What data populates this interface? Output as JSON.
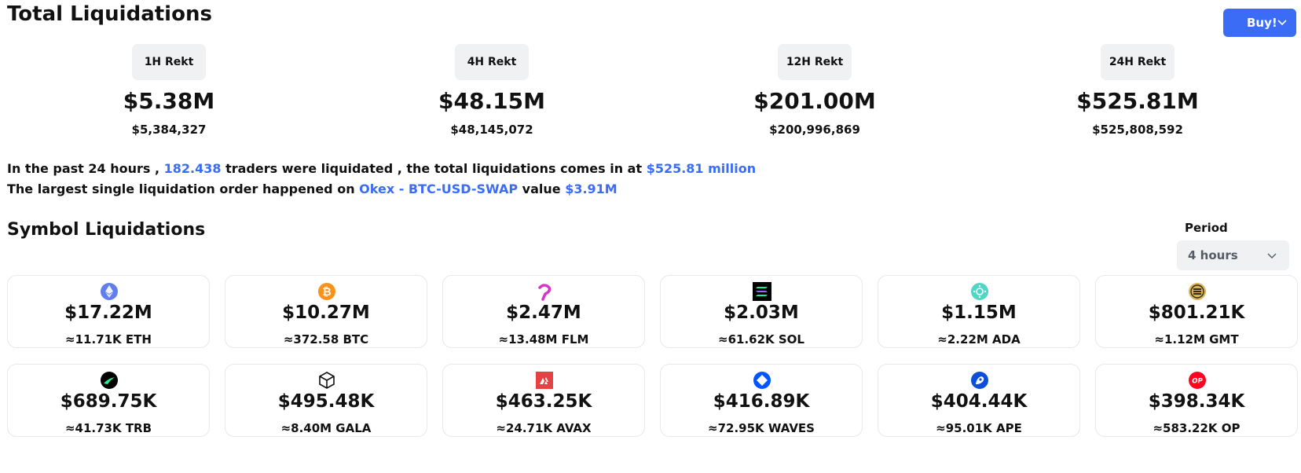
{
  "header": {
    "title": "Total Liquidations",
    "buy_label": "Buy!"
  },
  "stats": [
    {
      "label": "1H Rekt",
      "big": "$5.38M",
      "exact": "$5,384,327"
    },
    {
      "label": "4H Rekt",
      "big": "$48.15M",
      "exact": "$48,145,072"
    },
    {
      "label": "12H Rekt",
      "big": "$201.00M",
      "exact": "$200,996,869"
    },
    {
      "label": "24H Rekt",
      "big": "$525.81M",
      "exact": "$525,808,592"
    }
  ],
  "summary": {
    "l1_a": "In the past 24 hours ,",
    "l1_traders": "182.438",
    "l1_b": "traders were liquidated , the total liquidations comes in at",
    "l1_total": "$525.81 million",
    "l2_a": "The largest single liquidation order happened on",
    "l2_exchange": "Okex - BTC-USD-SWAP",
    "l2_b": "value",
    "l2_value": "$3.91M"
  },
  "symbols": {
    "title": "Symbol Liquidations",
    "period_label": "Period",
    "period_value": "4 hours",
    "cards": [
      {
        "icon": "eth-icon",
        "amount": "$17.22M",
        "qty": "≈11.71K ETH"
      },
      {
        "icon": "btc-icon",
        "amount": "$10.27M",
        "qty": "≈372.58 BTC"
      },
      {
        "icon": "flm-icon",
        "amount": "$2.47M",
        "qty": "≈13.48M FLM"
      },
      {
        "icon": "sol-icon",
        "amount": "$2.03M",
        "qty": "≈61.62K SOL"
      },
      {
        "icon": "ada-icon",
        "amount": "$1.15M",
        "qty": "≈2.22M ADA"
      },
      {
        "icon": "gmt-icon",
        "amount": "$801.21K",
        "qty": "≈1.12M GMT"
      },
      {
        "icon": "trb-icon",
        "amount": "$689.75K",
        "qty": "≈41.73K TRB"
      },
      {
        "icon": "gala-icon",
        "amount": "$495.48K",
        "qty": "≈8.40M GALA"
      },
      {
        "icon": "avax-icon",
        "amount": "$463.25K",
        "qty": "≈24.71K AVAX"
      },
      {
        "icon": "waves-icon",
        "amount": "$416.89K",
        "qty": "≈72.95K WAVES"
      },
      {
        "icon": "ape-icon",
        "amount": "$404.44K",
        "qty": "≈95.01K APE"
      },
      {
        "icon": "op-icon",
        "amount": "$398.34K",
        "qty": "≈583.22K OP"
      }
    ]
  },
  "colors": {
    "accent": "#3b6cf5",
    "badge_bg": "#eff1f3",
    "card_border": "#e6e8eb"
  }
}
